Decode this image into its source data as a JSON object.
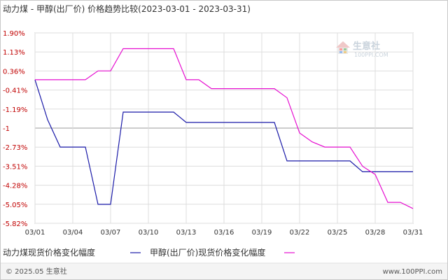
{
  "chart_data": {
    "type": "line",
    "title": "动力煤 - 甲醇(出厂价) 价格趋势比较(2023-03-01 - 2023-03-31)",
    "xlabel": "",
    "ylabel": "",
    "x_ticks": [
      "03/01",
      "03/04",
      "03/07",
      "03/10",
      "03/13",
      "03/16",
      "03/19",
      "03/22",
      "03/25",
      "03/28",
      "03/31"
    ],
    "y_ticks": [
      "1.90%",
      "1.13%",
      "0.36%",
      "-0.41%",
      "-1.19%",
      "-1",
      "-2.73%",
      "-3.51%",
      "-4.28%",
      "-5.05%",
      "-5.82%"
    ],
    "ylim": [
      -5.82,
      1.9
    ],
    "grid": true,
    "legend_position": "bottom",
    "series": [
      {
        "name": "动力煤现货价格变化幅度",
        "color": "#1a1aa8",
        "points": [
          [
            1,
            0
          ],
          [
            2,
            -1.62
          ],
          [
            3,
            -2.73
          ],
          [
            5,
            -2.73
          ],
          [
            6,
            -5.05
          ],
          [
            7,
            -5.05
          ],
          [
            8,
            -1.31
          ],
          [
            12,
            -1.31
          ],
          [
            13,
            -1.73
          ],
          [
            20,
            -1.73
          ],
          [
            21,
            -3.29
          ],
          [
            26,
            -3.29
          ],
          [
            27,
            -3.73
          ],
          [
            31,
            -3.73
          ]
        ]
      },
      {
        "name": "甲醇(出厂价)现货价格变化幅度",
        "color": "#e60fd0",
        "points": [
          [
            1,
            0
          ],
          [
            5,
            0
          ],
          [
            6,
            0.36
          ],
          [
            7,
            0.36
          ],
          [
            8,
            1.26
          ],
          [
            12,
            1.26
          ],
          [
            13,
            0
          ],
          [
            14,
            0
          ],
          [
            15,
            -0.36
          ],
          [
            20,
            -0.36
          ],
          [
            21,
            -0.73
          ],
          [
            22,
            -2.16
          ],
          [
            23,
            -2.52
          ],
          [
            24,
            -2.73
          ],
          [
            26,
            -2.73
          ],
          [
            27,
            -3.51
          ],
          [
            28,
            -3.84
          ],
          [
            29,
            -4.97
          ],
          [
            30,
            -4.97
          ],
          [
            31,
            -5.22
          ]
        ]
      }
    ]
  },
  "footer": {
    "copyright": "© 2025.05 生意社",
    "url": "www.100PPI.com"
  },
  "watermark": {
    "brand": "生意社",
    "url": "100PPI.COM"
  }
}
